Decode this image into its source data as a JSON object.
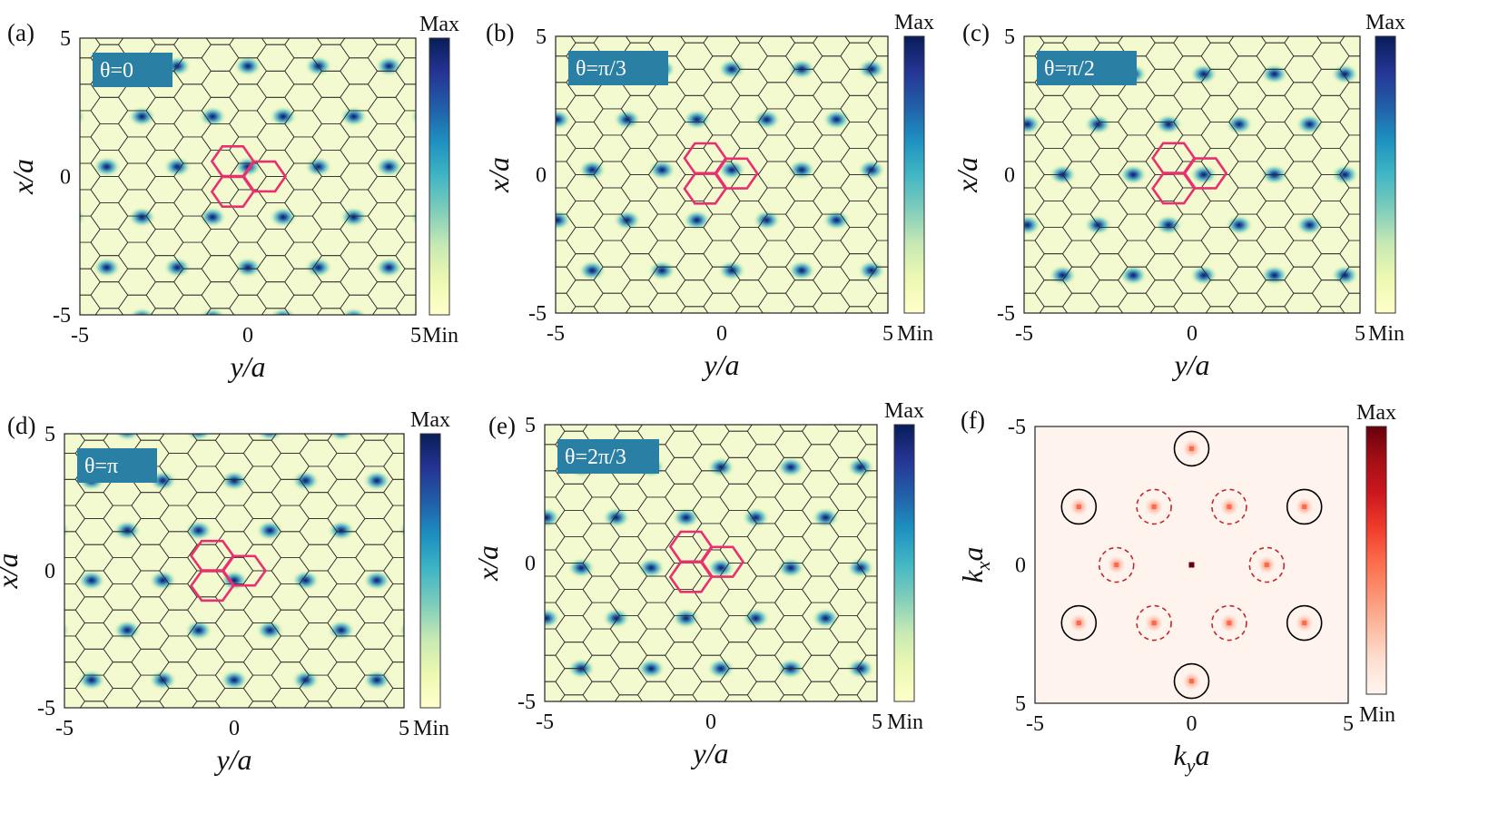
{
  "colorbar": {
    "max_label": "Max",
    "min_label": "Min"
  },
  "colormaps": {
    "density": [
      "#ffffcc",
      "#edf8b1",
      "#c7e9b4",
      "#7fcdbb",
      "#41b6c4",
      "#1d91c0",
      "#225ea8",
      "#253494",
      "#081d58"
    ],
    "fourier": [
      "#fff5f0",
      "#fee0d2",
      "#fcbba1",
      "#fc9272",
      "#fb6a4a",
      "#ef3b2c",
      "#cb181d",
      "#a50f15",
      "#67000d"
    ]
  },
  "colors": {
    "badge": "#2a7fa4",
    "highlight_hex": "#e8306e",
    "lattice_line": "#2b2b2b",
    "solid_circle": "#000000",
    "dashed_circle": "#c0282b"
  },
  "panels": [
    {
      "label": "(a)",
      "badge": "θ=0",
      "angle": 0,
      "xlabel": "y/a",
      "ylabel": "x/a",
      "xticks": [
        "-5",
        "0",
        "5"
      ],
      "yticks": [
        "5",
        "0",
        "-5"
      ],
      "xlim": [
        -5,
        5
      ],
      "ylim": [
        -5,
        5
      ]
    },
    {
      "label": "(b)",
      "badge": "θ=π/3",
      "angle": 1.0472,
      "xlabel": "y/a",
      "ylabel": "x/a",
      "xticks": [
        "-5",
        "0",
        "5"
      ],
      "yticks": [
        "5",
        "0",
        "-5"
      ],
      "xlim": [
        -5,
        5
      ],
      "ylim": [
        -5,
        5
      ]
    },
    {
      "label": "(c)",
      "badge": "θ=π/2",
      "angle": 1.5708,
      "xlabel": "y/a",
      "ylabel": "x/a",
      "xticks": [
        "-5",
        "0",
        "5"
      ],
      "yticks": [
        "5",
        "0",
        "-5"
      ],
      "xlim": [
        -5,
        5
      ],
      "ylim": [
        -5,
        5
      ]
    },
    {
      "label": "(d)",
      "badge": "θ=π",
      "angle": 3.1416,
      "xlabel": "y/a",
      "ylabel": "x/a",
      "xticks": [
        "-5",
        "0",
        "5"
      ],
      "yticks": [
        "5",
        "0",
        "-5"
      ],
      "xlim": [
        -5,
        5
      ],
      "ylim": [
        -5,
        5
      ]
    },
    {
      "label": "(e)",
      "badge": "θ=2π/3",
      "angle": 2.0944,
      "xlabel": "y/a",
      "ylabel": "x/a",
      "xticks": [
        "-5",
        "0",
        "5"
      ],
      "yticks": [
        "5",
        "0",
        "-5"
      ],
      "xlim": [
        -5,
        5
      ],
      "ylim": [
        -5,
        5
      ]
    },
    {
      "label": "(f)",
      "xlabel_main": "k",
      "xlabel_sub": "y",
      "xlabel_tail": "a",
      "ylabel_main": "k",
      "ylabel_sub": "x",
      "ylabel_tail": "a",
      "xticks": [
        "-5",
        "0",
        "5"
      ],
      "yticks": [
        "-5",
        "0",
        "5"
      ],
      "xlim": [
        -5,
        5
      ],
      "ylim": [
        -5,
        5
      ]
    }
  ],
  "chart_data": [
    {
      "type": "heatmap",
      "panel": "(a)",
      "quantity": "density",
      "theta": "0",
      "xlabel": "y/a",
      "ylabel": "x/a",
      "xlim": [
        -5,
        5
      ],
      "ylim": [
        -5,
        5
      ],
      "colorbar": [
        "Min",
        "Max"
      ]
    },
    {
      "type": "heatmap",
      "panel": "(b)",
      "quantity": "density",
      "theta": "π/3",
      "xlabel": "y/a",
      "ylabel": "x/a",
      "xlim": [
        -5,
        5
      ],
      "ylim": [
        -5,
        5
      ],
      "colorbar": [
        "Min",
        "Max"
      ]
    },
    {
      "type": "heatmap",
      "panel": "(c)",
      "quantity": "density",
      "theta": "π/2",
      "xlabel": "y/a",
      "ylabel": "x/a",
      "xlim": [
        -5,
        5
      ],
      "ylim": [
        -5,
        5
      ],
      "colorbar": [
        "Min",
        "Max"
      ]
    },
    {
      "type": "heatmap",
      "panel": "(d)",
      "quantity": "density",
      "theta": "π",
      "xlabel": "y/a",
      "ylabel": "x/a",
      "xlim": [
        -5,
        5
      ],
      "ylim": [
        -5,
        5
      ],
      "colorbar": [
        "Min",
        "Max"
      ]
    },
    {
      "type": "heatmap",
      "panel": "(e)",
      "quantity": "density",
      "theta": "2π/3",
      "xlabel": "y/a",
      "ylabel": "x/a",
      "xlim": [
        -5,
        5
      ],
      "ylim": [
        -5,
        5
      ],
      "colorbar": [
        "Min",
        "Max"
      ]
    },
    {
      "type": "heatmap",
      "panel": "(f)",
      "quantity": "fourier",
      "xlabel": "k_y a",
      "ylabel": "k_x a",
      "xlim": [
        -5,
        5
      ],
      "ylim": [
        5,
        -5
      ],
      "colorbar": [
        "Min",
        "Max"
      ],
      "peaks": [
        {
          "ky": 0,
          "kx": 0,
          "marker": "none"
        },
        {
          "ky": 0,
          "kx": -4.2,
          "marker": "solid"
        },
        {
          "ky": 0,
          "kx": 4.2,
          "marker": "solid"
        },
        {
          "ky": -3.6,
          "kx": -2.1,
          "marker": "solid"
        },
        {
          "ky": 3.6,
          "kx": -2.1,
          "marker": "solid"
        },
        {
          "ky": -3.6,
          "kx": 2.1,
          "marker": "solid"
        },
        {
          "ky": 3.6,
          "kx": 2.1,
          "marker": "solid"
        },
        {
          "ky": -1.2,
          "kx": -2.1,
          "marker": "dashed"
        },
        {
          "ky": 1.2,
          "kx": -2.1,
          "marker": "dashed"
        },
        {
          "ky": -2.4,
          "kx": 0,
          "marker": "dashed"
        },
        {
          "ky": 2.4,
          "kx": 0,
          "marker": "dashed"
        },
        {
          "ky": -1.2,
          "kx": 2.1,
          "marker": "dashed"
        },
        {
          "ky": 1.2,
          "kx": 2.1,
          "marker": "dashed"
        }
      ]
    }
  ]
}
